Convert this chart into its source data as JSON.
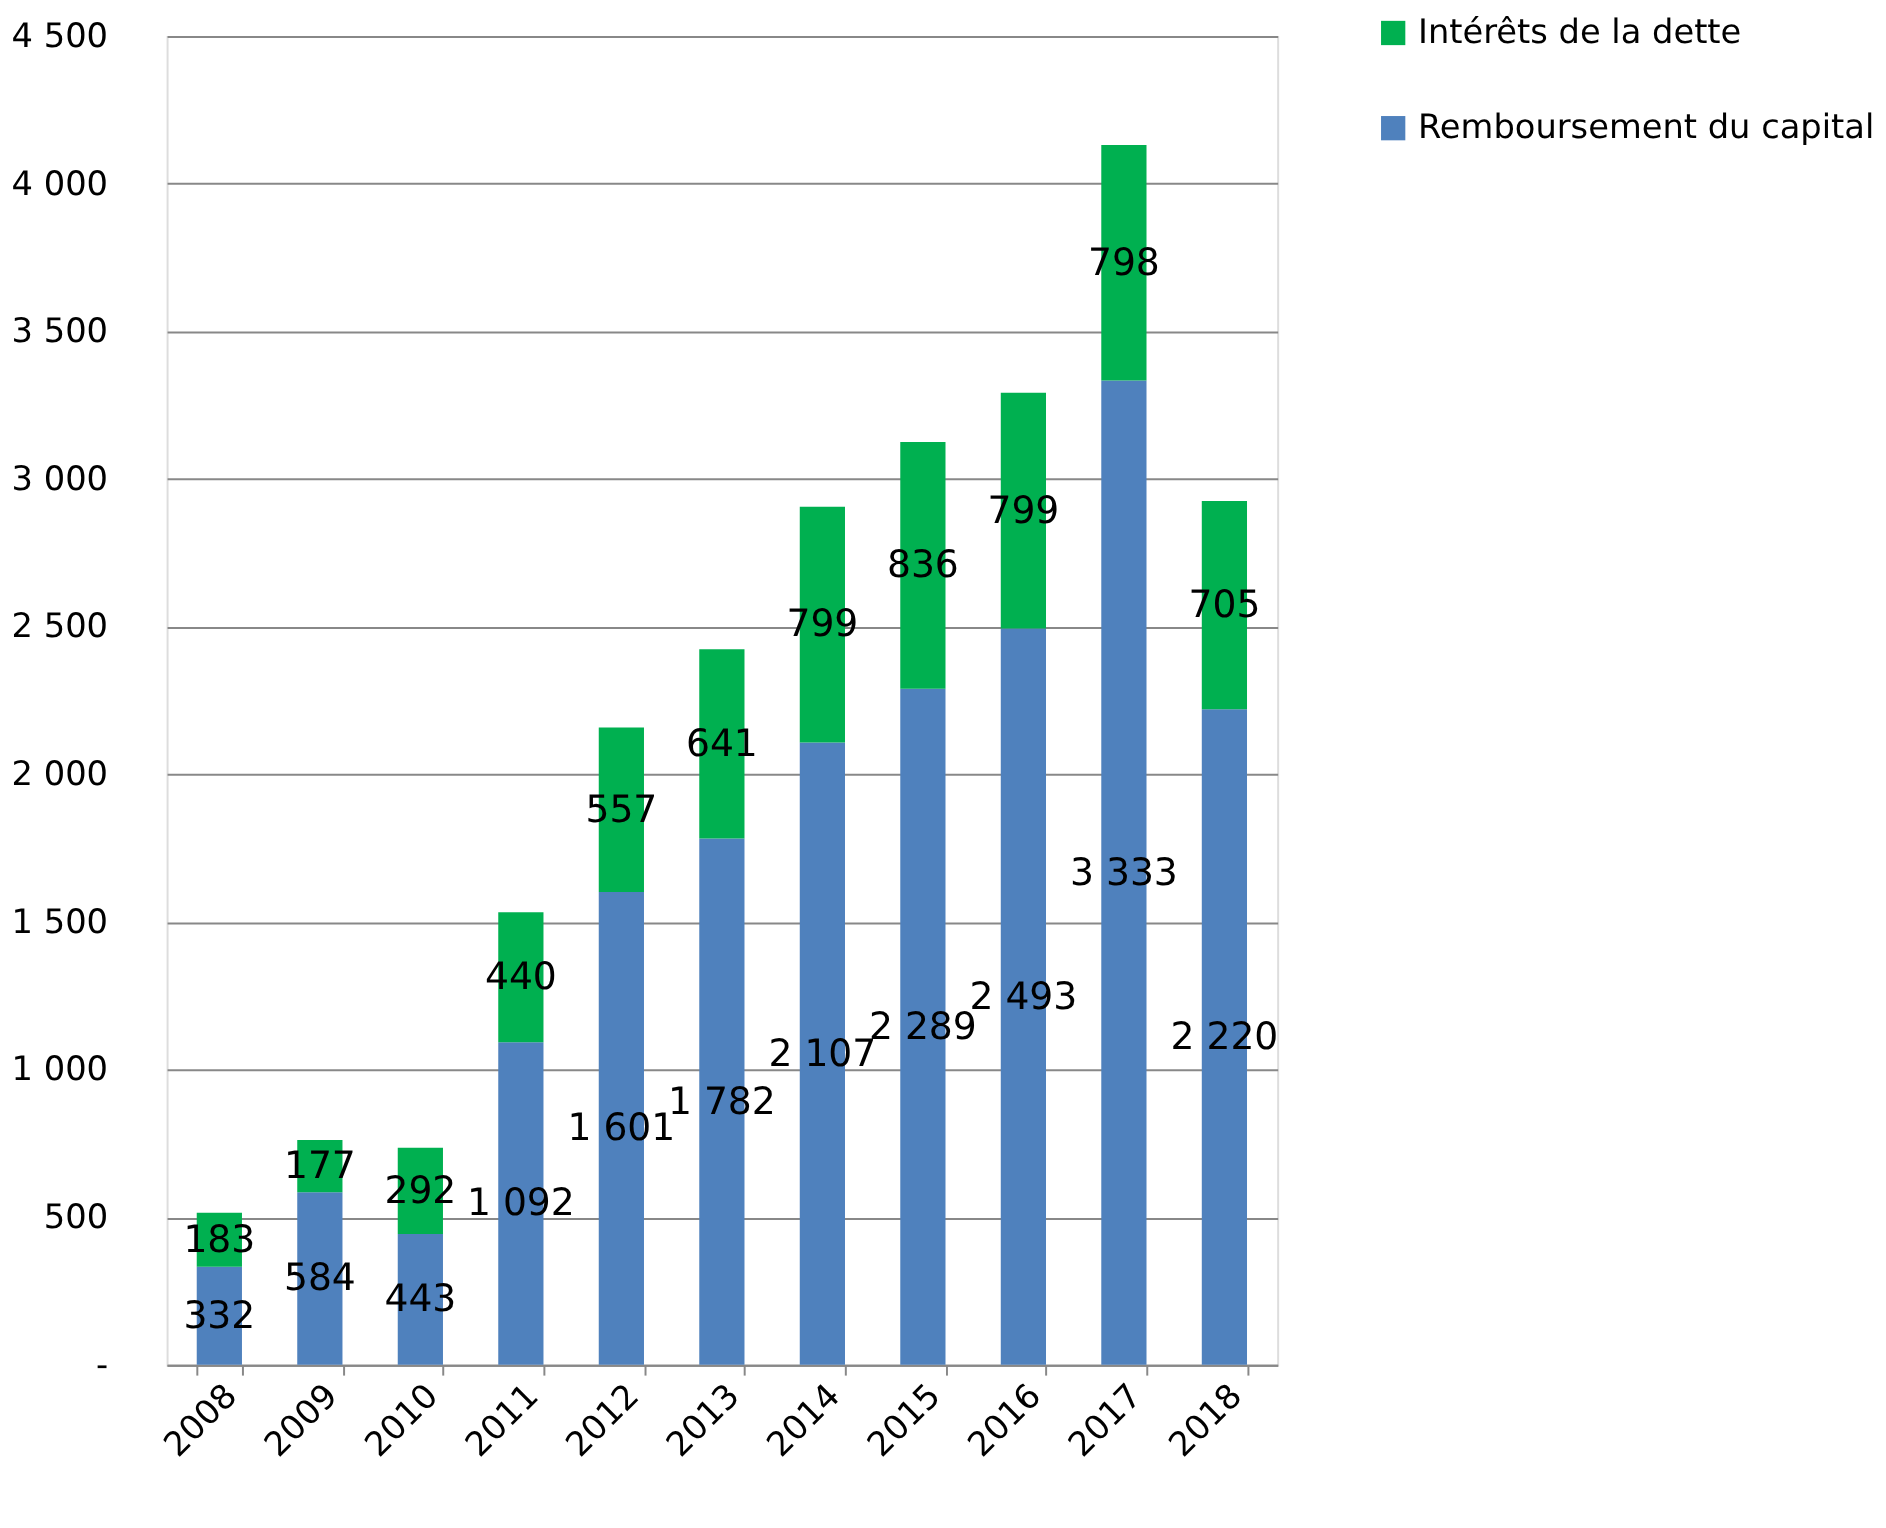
{
  "chart_data": {
    "type": "bar",
    "stacked": true,
    "categories": [
      "2008",
      "2009",
      "2010",
      "2011",
      "2012",
      "2013",
      "2014",
      "2015",
      "2016",
      "2017",
      "2018"
    ],
    "series": [
      {
        "name": "Remboursement du capital",
        "color": "#4f81bd",
        "values": [
          332,
          584,
          443,
          1092,
          1601,
          1782,
          2107,
          2289,
          2493,
          3333,
          2220
        ],
        "value_labels": [
          "332",
          "584",
          "443",
          "1 092",
          "1 601",
          "1 782",
          "2 107",
          "2 289",
          "2 493",
          "3 333",
          "2 220"
        ]
      },
      {
        "name": "Intérêts de la dette",
        "color": "#00b050",
        "values": [
          183,
          177,
          292,
          440,
          557,
          641,
          799,
          836,
          799,
          798,
          705
        ],
        "value_labels": [
          "183",
          "177",
          "292",
          "440",
          "557",
          "641",
          "799",
          "836",
          "799",
          "798",
          "705"
        ]
      }
    ],
    "ylim": [
      0,
      4500
    ],
    "yticks": [
      {
        "value": 0,
        "label": "-"
      },
      500,
      {
        "value": 1000,
        "label": "1 000"
      },
      {
        "value": 1500,
        "label": "1 500"
      },
      {
        "value": 2000,
        "label": "2 000"
      },
      {
        "value": 2500,
        "label": "2 500"
      },
      {
        "value": 3000,
        "label": "3 000"
      },
      {
        "value": 3500,
        "label": "3 500"
      },
      {
        "value": 4000,
        "label": "4 000"
      },
      {
        "value": 4500,
        "label": "4 500"
      }
    ],
    "grid": "y",
    "legend": "top right"
  }
}
